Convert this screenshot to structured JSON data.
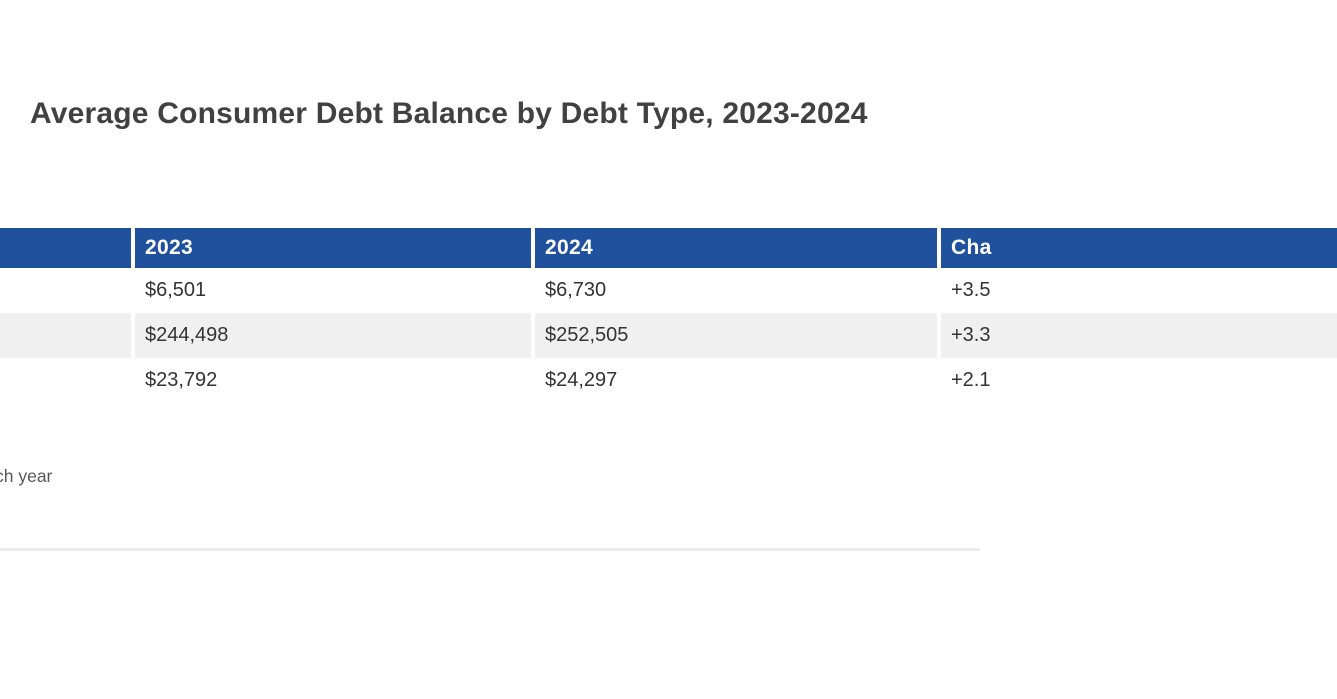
{
  "page": {
    "title": "Average Consumer Debt Balance by Debt Type, 2023-2024",
    "footnote_fragment": "ch year"
  },
  "colors": {
    "header_bg": "#20519d",
    "header_text": "#ffffff",
    "row_alt_bg": "#f0f0f0",
    "cell_text": "#333333",
    "title_text": "#414141",
    "footnote_text": "#575757",
    "divider": "#ebebeb"
  },
  "chart_data": {
    "type": "table",
    "title": "Average Consumer Debt Balance by Debt Type, 2023-2024",
    "columns": [
      "",
      "2023",
      "2024",
      "Cha"
    ],
    "rows": [
      [
        "",
        "$6,501",
        "$6,730",
        "+3.5"
      ],
      [
        "",
        "$244,498",
        "$252,505",
        "+3.3"
      ],
      [
        "",
        "$23,792",
        "$24,297",
        "+2.1"
      ]
    ],
    "footnote_visible_fragment": "ch year",
    "layout": {
      "header_style": "solid blue bar, white bold text",
      "row_striping": "white / light-gray / white",
      "first_column_clipped_at_left_edge": true,
      "change_column_clipped_at_right_edge": true
    }
  }
}
